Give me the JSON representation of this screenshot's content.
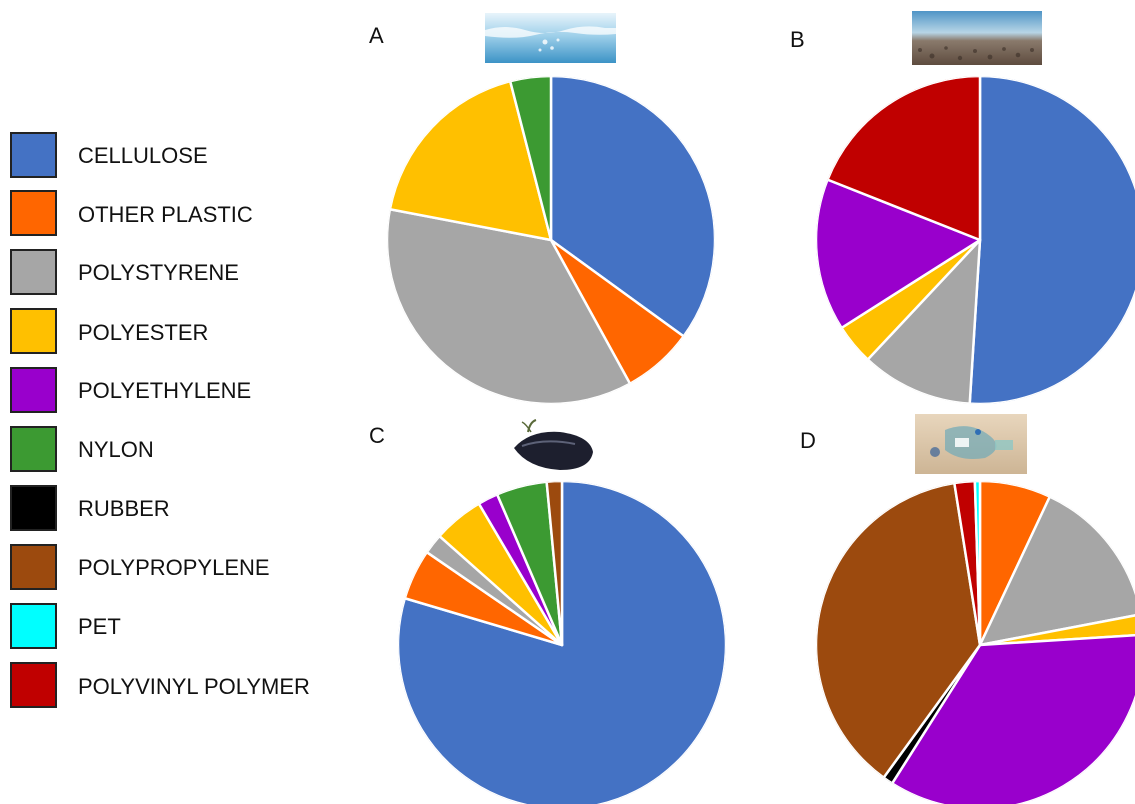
{
  "categories": [
    "CELLULOSE",
    "OTHER PLASTIC",
    "POLYSTYRENE",
    "POLYESTER",
    "POLYETHYLENE",
    "NYLON",
    "RUBBER",
    "POLYPROPYLENE",
    "PET",
    "POLYVINYL POLYMER"
  ],
  "colors": {
    "CELLULOSE": "#4472c4",
    "OTHER PLASTIC": "#ff6600",
    "POLYSTYRENE": "#a6a6a6",
    "POLYESTER": "#ffc000",
    "POLYETHYLENE": "#9900cc",
    "NYLON": "#3c9a32",
    "RUBBER": "#000000",
    "POLYPROPYLENE": "#9c4a0e",
    "PET": "#00ffff",
    "POLYVINYL POLYMER": "#c00000"
  },
  "chart_data": [
    {
      "type": "pie",
      "panel": "A",
      "image": "water-photo",
      "slices": [
        {
          "label": "CELLULOSE",
          "value": 35
        },
        {
          "label": "OTHER PLASTIC",
          "value": 7
        },
        {
          "label": "POLYSTYRENE",
          "value": 36
        },
        {
          "label": "POLYESTER",
          "value": 18
        },
        {
          "label": "NYLON",
          "value": 4
        }
      ]
    },
    {
      "type": "pie",
      "panel": "B",
      "image": "sediment-photo",
      "slices": [
        {
          "label": "CELLULOSE",
          "value": 51
        },
        {
          "label": "POLYSTYRENE",
          "value": 11
        },
        {
          "label": "POLYESTER",
          "value": 4
        },
        {
          "label": "POLYETHYLENE",
          "value": 15
        },
        {
          "label": "POLYVINYL POLYMER",
          "value": 19
        }
      ]
    },
    {
      "type": "pie",
      "panel": "C",
      "image": "mussel-photo",
      "slices": [
        {
          "label": "CELLULOSE",
          "value": 80
        },
        {
          "label": "OTHER PLASTIC",
          "value": 5
        },
        {
          "label": "POLYSTYRENE",
          "value": 2
        },
        {
          "label": "POLYESTER",
          "value": 5
        },
        {
          "label": "POLYETHYLENE",
          "value": 2
        },
        {
          "label": "NYLON",
          "value": 5
        },
        {
          "label": "POLYPROPYLENE",
          "value": 1.5
        }
      ]
    },
    {
      "type": "pie",
      "panel": "D",
      "image": "beach-litter-photo",
      "slices": [
        {
          "label": "OTHER PLASTIC",
          "value": 7
        },
        {
          "label": "POLYSTYRENE",
          "value": 15
        },
        {
          "label": "POLYESTER",
          "value": 2
        },
        {
          "label": "POLYETHYLENE",
          "value": 35
        },
        {
          "label": "RUBBER",
          "value": 1
        },
        {
          "label": "POLYPROPYLENE",
          "value": 37.5
        },
        {
          "label": "POLYVINYL POLYMER",
          "value": 2
        },
        {
          "label": "PET",
          "value": 0.5
        }
      ]
    }
  ]
}
